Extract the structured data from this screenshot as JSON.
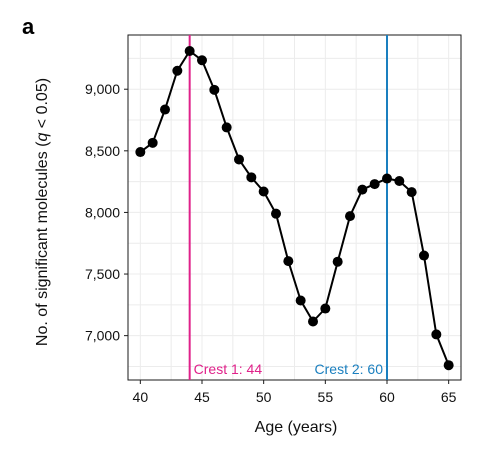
{
  "panel_label": "a",
  "chart_data": {
    "type": "line",
    "title": "",
    "xlabel": "Age (years)",
    "ylabel_parts": [
      "No. of significant molecules (",
      "q",
      " < 0.05)"
    ],
    "xlim": [
      39,
      66
    ],
    "ylim": [
      6640,
      9440
    ],
    "x_ticks": [
      40,
      45,
      50,
      55,
      60,
      65
    ],
    "y_ticks": [
      7000,
      7500,
      8000,
      8500,
      9000
    ],
    "y_tick_labels": [
      "7,000",
      "7,500",
      "8,000",
      "8,500",
      "9,000"
    ],
    "grid": true,
    "series": [
      {
        "x": [
          40,
          41,
          42,
          43,
          44,
          45,
          46,
          47,
          48,
          49,
          50,
          51,
          52,
          53,
          54,
          55,
          56,
          57,
          58,
          59,
          60,
          61,
          62,
          63,
          64,
          65
        ],
        "y": [
          8490,
          8565,
          8835,
          9150,
          9310,
          9235,
          8995,
          8690,
          8430,
          8285,
          8170,
          7990,
          7605,
          7285,
          7115,
          7220,
          7600,
          7970,
          8185,
          8230,
          8275,
          8255,
          8165,
          7650,
          7010,
          6760
        ],
        "color": "#000000"
      }
    ],
    "annotations": [
      {
        "label": "Crest 1: 44",
        "x": 44,
        "color": "#e0218a",
        "label_side": "right"
      },
      {
        "label": "Crest 2: 60",
        "x": 60,
        "color": "#1a7fbf",
        "label_side": "left"
      }
    ]
  }
}
